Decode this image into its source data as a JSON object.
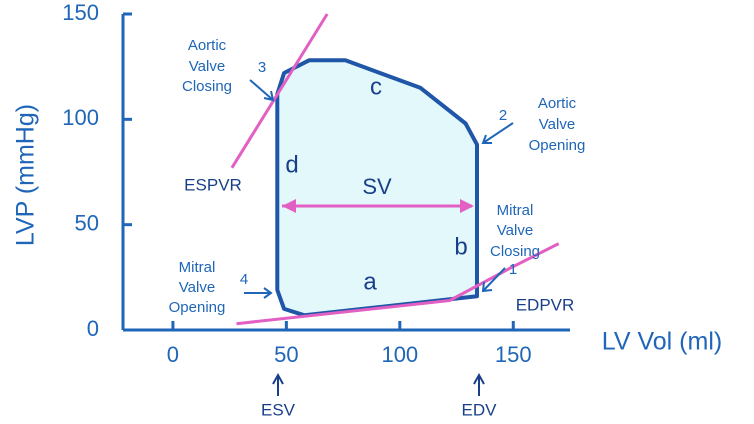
{
  "chart_data": {
    "type": "line",
    "y_label": "LVP (mmHg)",
    "x_label": "LV Vol (ml)",
    "xlim": [
      -22,
      175
    ],
    "ylim": [
      0,
      150
    ],
    "xticks": [
      0,
      50,
      100,
      150
    ],
    "yticks": [
      0,
      50,
      100,
      150
    ],
    "axis_color": "#1f66b8",
    "series": [
      {
        "color": "#1f56a8",
        "fill": "#e2f8fa",
        "x": [
          134,
          134,
          129,
          109,
          76,
          60,
          49,
          46,
          46,
          49,
          58
        ],
        "y": [
          16,
          88,
          98,
          115,
          128,
          128,
          122,
          112,
          19,
          10,
          7
        ]
      },
      {
        "name": "ESPVR",
        "color": "#e25fc4",
        "x": [
          26,
          68
        ],
        "y": [
          77,
          150
        ]
      },
      {
        "name": "EDPVR",
        "color": "#e25fc4",
        "x": [
          28,
          122,
          148,
          170
        ],
        "y": [
          3,
          14,
          29,
          41
        ]
      }
    ],
    "annotations": [
      {
        "step": 3,
        "lines": [
          "Aortic",
          "Valve",
          "Closing"
        ]
      },
      {
        "step": 2,
        "lines": [
          "Aortic",
          "Valve",
          "Opening"
        ]
      },
      {
        "step": 1,
        "lines": [
          "Mitral",
          "Valve",
          "Closing"
        ]
      },
      {
        "step": 4,
        "lines": [
          "Mitral",
          "Valve",
          "Opening"
        ]
      }
    ],
    "segments": [
      "a",
      "b",
      "c",
      "d"
    ],
    "stroke_volume": "SV",
    "markers": [
      "ESV",
      "EDV"
    ]
  }
}
